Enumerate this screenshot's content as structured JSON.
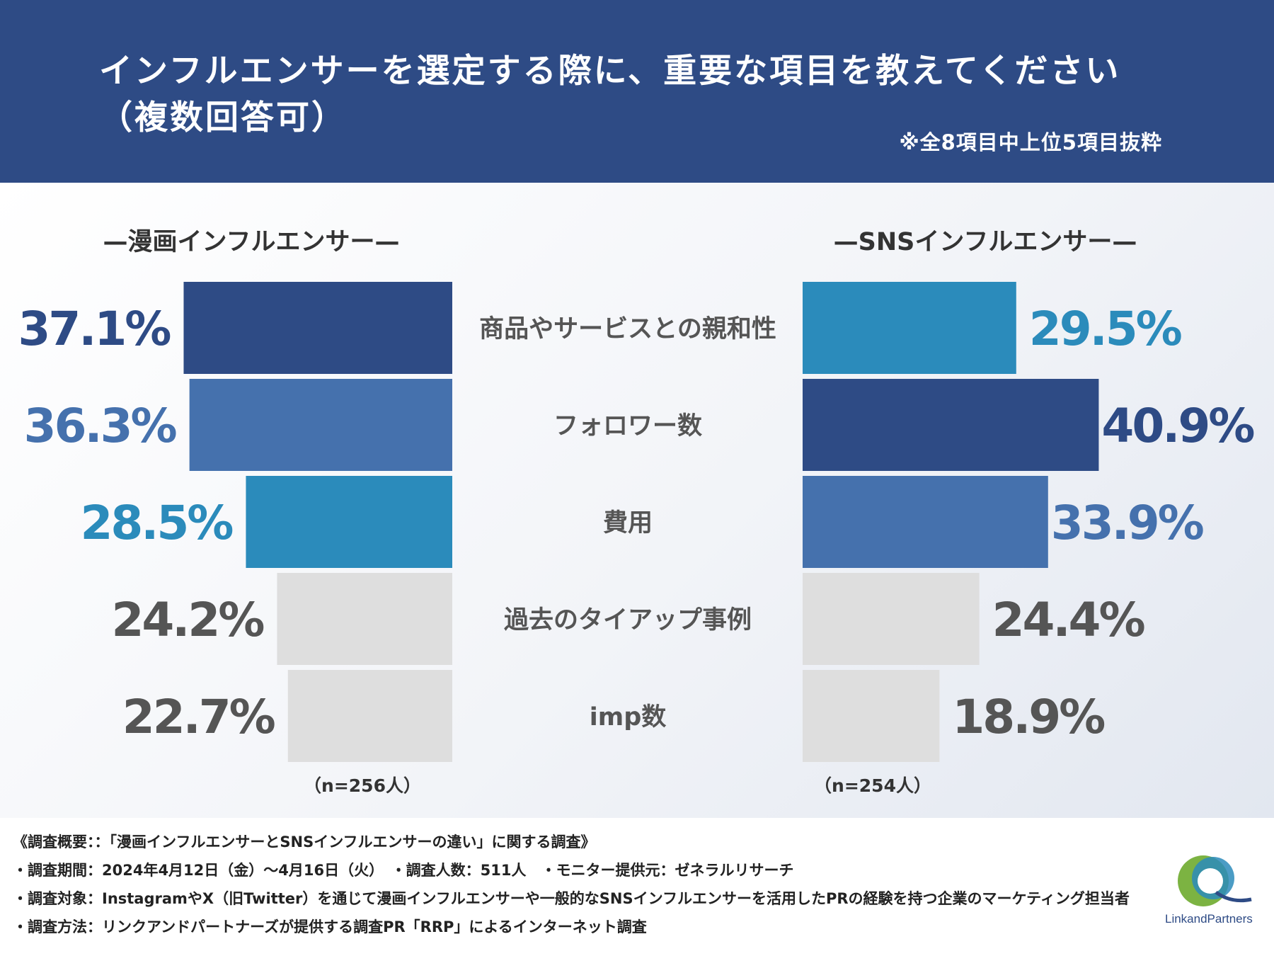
{
  "header": {
    "title": "インフルエンサーを選定する際に、重要な項目を教えてください\n（複数回答可）",
    "note": "※全8項目中上位5項目抜粋"
  },
  "chart_data": {
    "type": "bar",
    "title": "インフルエンサーを選定する際に、重要な項目を教えてください（複数回答可）",
    "unit": "%",
    "categories": [
      "商品やサービスとの親和性",
      "フォロワー数",
      "費用",
      "過去のタイアップ事例",
      "imp数"
    ],
    "series": [
      {
        "name": "—漫画インフルエンサー—",
        "values": [
          37.1,
          36.3,
          28.5,
          24.2,
          22.7
        ],
        "labels": [
          "37.1%",
          "36.3%",
          "28.5%",
          "24.2%",
          "22.7%"
        ],
        "sample": "（n=256人）"
      },
      {
        "name": "—SNSインフルエンサー—",
        "values": [
          29.5,
          40.9,
          33.9,
          24.4,
          18.9
        ],
        "labels": [
          "29.5%",
          "40.9%",
          "33.9%",
          "24.4%",
          "18.9%"
        ],
        "sample": "（n=254人）"
      }
    ],
    "colors": {
      "rank1": "#2e4b85",
      "rank2": "#4571ad",
      "rank3": "#2b8bbb",
      "other_bar": "#dedede",
      "other_text": "#555555",
      "category_text": "#555555",
      "header_text": "#333333"
    }
  },
  "footer": {
    "lines": [
      "《調査概要：：「漫画インフルエンサーとSNSインフルエンサーの違い」に関する調査》",
      "・調査期間：2024年4月12日（金）〜4月16日（火）　・調査人数：511人　・モニター提供元：ゼネラルリサーチ",
      "・調査対象：InstagramやX（旧Twitter）を通じて漫画インフルエンサーや一般的なSNSインフルエンサーを活用したPRの経験を持つ企業のマーケティング担当者",
      "・調査方法：リンクアンドパートナーズが提供する調査PR「RRP」によるインターネット調査"
    ],
    "logo_text": "LinkandPartners"
  }
}
